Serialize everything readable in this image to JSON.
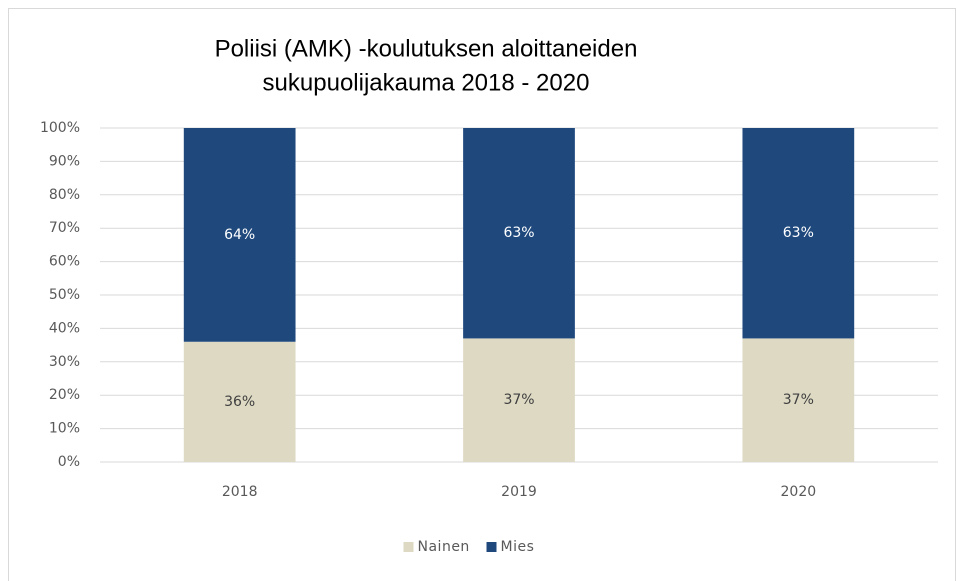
{
  "chart_data": {
    "type": "stacked_bar",
    "title": [
      "Poliisi (AMK) -koulutuksen aloittaneiden",
      "sukupuolijakauma 2018 - 2020"
    ],
    "categories": [
      "2018",
      "2019",
      "2020"
    ],
    "series": [
      {
        "name": "Nainen",
        "color": "#ddd9c3",
        "label_color": "#404040",
        "values": [
          36,
          37,
          37
        ],
        "value_labels": [
          "36%",
          "37%",
          "37%"
        ]
      },
      {
        "name": "Mies",
        "color": "#1f497d",
        "label_color": "#ffffff",
        "values": [
          64,
          63,
          63
        ],
        "value_labels": [
          "64%",
          "63%",
          "63%"
        ]
      }
    ],
    "ylim": [
      0,
      100
    ],
    "yticks": [
      {
        "value": 0,
        "label": "0%"
      },
      {
        "value": 10,
        "label": "10%"
      },
      {
        "value": 20,
        "label": "20%"
      },
      {
        "value": 30,
        "label": "30%"
      },
      {
        "value": 40,
        "label": "40%"
      },
      {
        "value": 50,
        "label": "50%"
      },
      {
        "value": 60,
        "label": "60%"
      },
      {
        "value": 70,
        "label": "70%"
      },
      {
        "value": 80,
        "label": "80%"
      },
      {
        "value": 90,
        "label": "90%"
      },
      {
        "value": 100,
        "label": "100%"
      }
    ],
    "grid": true,
    "legend": "bottom"
  }
}
